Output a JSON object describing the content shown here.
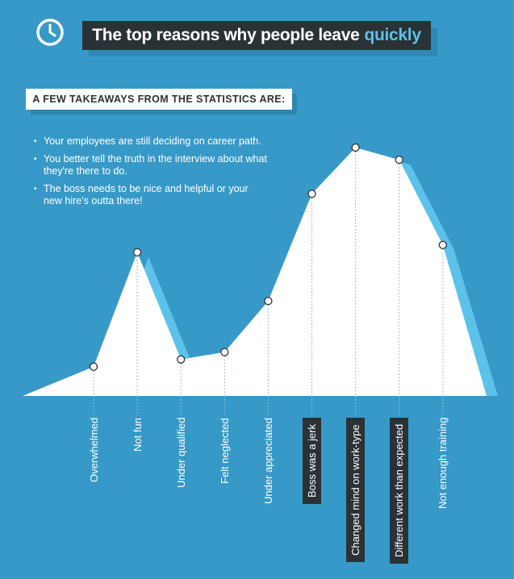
{
  "header": {
    "title_main": "The top reasons why people leave",
    "title_accent": "quickly",
    "icon": "clock-icon"
  },
  "subtitle": "A FEW TAKEAWAYS FROM THE STATISTICS ARE:",
  "takeaways": [
    "Your employees are still deciding on career path.",
    "You better tell the truth in the interview about what they're there to do.",
    "The boss needs to be nice and helpful or your new hire's outta there!"
  ],
  "colors": {
    "background": "#3799c7",
    "area": "#ffffff",
    "shadow": "#5cc2ea",
    "title_box": "#2a3236",
    "accent": "#5cc2ea",
    "highlight_label_bg": "#2a3236"
  },
  "chart_data": {
    "type": "area",
    "title": "The top reasons why people leave quickly",
    "xlabel": "",
    "ylabel": "",
    "categories": [
      "Overwhelmed",
      "Not fun",
      "Under qualified",
      "Felt neglected",
      "Under appreciated",
      "Boss was a jerk",
      "Changed mind on work-type",
      "Different work than expected",
      "Not enough training"
    ],
    "values": [
      12,
      59,
      15,
      18,
      39,
      83,
      102,
      97,
      62
    ],
    "highlighted": [
      "Boss was a jerk",
      "Changed mind on work-type",
      "Different work than expected"
    ],
    "ylim": [
      0,
      110
    ],
    "grid": false,
    "legend": "none"
  }
}
